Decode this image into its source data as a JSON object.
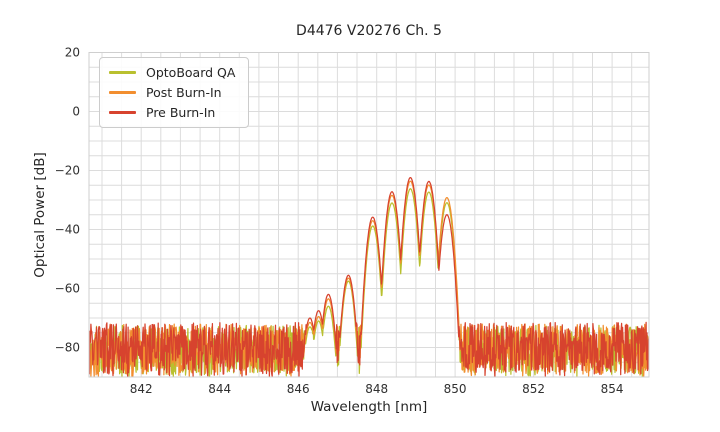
{
  "chart_data": {
    "type": "line",
    "title": "D4476 V20276 Ch. 5",
    "xlabel": "Wavelength [nm]",
    "ylabel": "Optical Power [dB]",
    "xlim": [
      840.67,
      854.94
    ],
    "ylim": [
      -90,
      20
    ],
    "xticks": [
      842,
      844,
      846,
      848,
      850,
      852,
      854
    ],
    "yticks": [
      20,
      0,
      -20,
      -40,
      -60,
      -80
    ],
    "grid": {
      "x_step": 0.5,
      "y_step": 5,
      "color": "#dcdcdc",
      "frame_color": "#cfcfcf"
    },
    "legend_position": "upper left",
    "tick_color": "#303030",
    "series": [
      {
        "label": "OptoBoard QA",
        "color": "#b9c02f",
        "lobe_width_k": 478,
        "seed": 11,
        "lobes": [
          [
            846.3,
            -73
          ],
          [
            846.52,
            -71
          ],
          [
            846.77,
            -66
          ],
          [
            847.28,
            -57.5
          ],
          [
            847.9,
            -38.8
          ],
          [
            848.39,
            -31.0
          ],
          [
            848.86,
            -26.2
          ],
          [
            849.33,
            -27.3
          ],
          [
            849.79,
            -30.9
          ]
        ],
        "noise_band": [
          -88.5,
          -72.5
        ]
      },
      {
        "label": "Post Burn-In",
        "color": "#f28e2f",
        "lobe_width_k": 460,
        "seed": 22,
        "lobes": [
          [
            846.3,
            -71.5
          ],
          [
            846.52,
            -69.5
          ],
          [
            846.77,
            -63.5
          ],
          [
            847.28,
            -56.5
          ],
          [
            847.9,
            -37.0
          ],
          [
            848.39,
            -28.4
          ],
          [
            848.86,
            -23.6
          ],
          [
            849.33,
            -24.9
          ],
          [
            849.79,
            -29.2
          ]
        ],
        "noise_band": [
          -88.5,
          -72.0
        ]
      },
      {
        "label": "Pre Burn-In",
        "color": "#d7432e",
        "lobe_width_k": 460,
        "seed": 33,
        "lobes": [
          [
            846.3,
            -70
          ],
          [
            846.52,
            -67.5
          ],
          [
            846.77,
            -62
          ],
          [
            847.28,
            -55.5
          ],
          [
            847.9,
            -35.8
          ],
          [
            848.39,
            -27.2
          ],
          [
            848.86,
            -22.4
          ],
          [
            849.33,
            -23.7
          ],
          [
            849.79,
            -35.0
          ]
        ],
        "noise_band": [
          -88.0,
          -71.5
        ]
      }
    ]
  }
}
